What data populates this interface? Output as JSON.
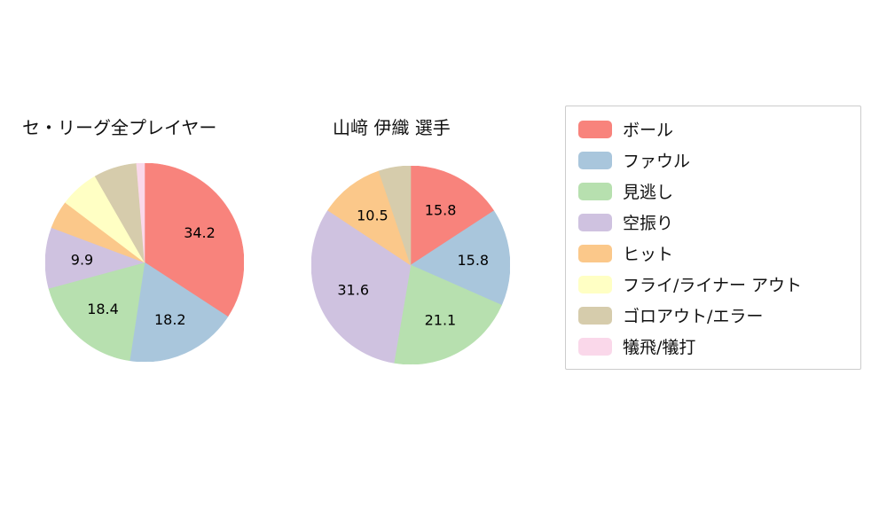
{
  "chart_data": {
    "type": "pie",
    "direction": "clockwise",
    "start_angle_deg": 0,
    "label_color": "#000000",
    "legend_position": "right",
    "legend": [
      {
        "label": "ボール",
        "color": "#f8837c"
      },
      {
        "label": "ファウル",
        "color": "#a9c6dc"
      },
      {
        "label": "見逃し",
        "color": "#b7e0af"
      },
      {
        "label": "空振り",
        "color": "#cfc2e0"
      },
      {
        "label": "ヒット",
        "color": "#fbc88a"
      },
      {
        "label": "フライ/ライナー アウト",
        "color": "#ffffc4"
      },
      {
        "label": "ゴロアウト/エラー",
        "color": "#d6ccac"
      },
      {
        "label": "犠飛/犠打",
        "color": "#fad8ea"
      }
    ],
    "pies": [
      {
        "title": "セ・リーグ全プレイヤー",
        "slices": [
          {
            "category": "ボール",
            "value": 34.2,
            "label": "34.2"
          },
          {
            "category": "ファウル",
            "value": 18.2,
            "label": "18.2"
          },
          {
            "category": "見逃し",
            "value": 18.4,
            "label": "18.4"
          },
          {
            "category": "空振り",
            "value": 9.9,
            "label": "9.9"
          },
          {
            "category": "ヒット",
            "value": 4.6,
            "label": ""
          },
          {
            "category": "フライ/ライナー アウト",
            "value": 6.4,
            "label": ""
          },
          {
            "category": "ゴロアウト/エラー",
            "value": 7.0,
            "label": ""
          },
          {
            "category": "犠飛/犠打",
            "value": 1.3,
            "label": ""
          }
        ]
      },
      {
        "title": "山﨑 伊織 選手",
        "slices": [
          {
            "category": "ボール",
            "value": 15.8,
            "label": "15.8"
          },
          {
            "category": "ファウル",
            "value": 15.8,
            "label": "15.8"
          },
          {
            "category": "見逃し",
            "value": 21.1,
            "label": "21.1"
          },
          {
            "category": "空振り",
            "value": 31.6,
            "label": "31.6"
          },
          {
            "category": "ヒット",
            "value": 10.5,
            "label": "10.5"
          },
          {
            "category": "ゴロアウト/エラー",
            "value": 5.2,
            "label": ""
          }
        ]
      }
    ]
  }
}
